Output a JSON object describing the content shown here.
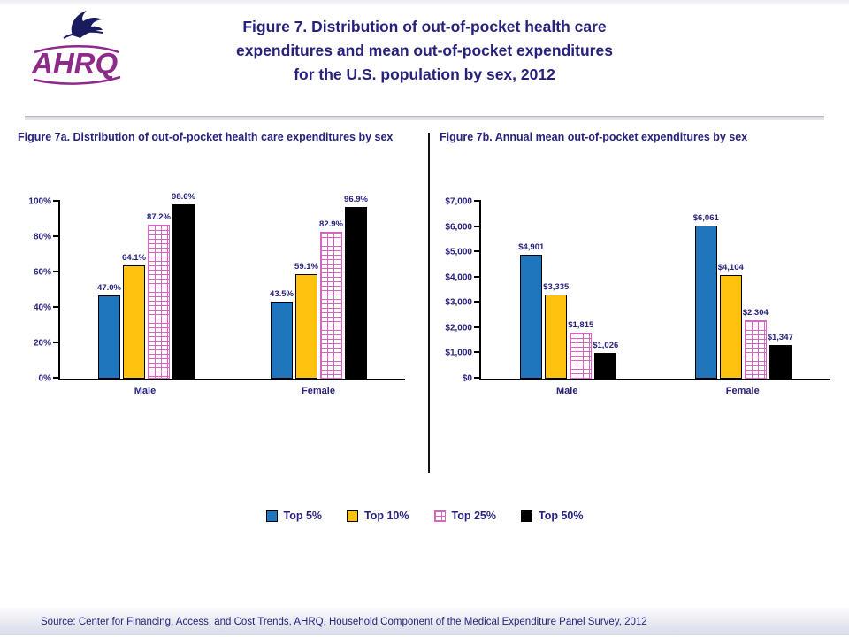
{
  "header": {
    "title": "Figure 7. Distribution of out-of-pocket health care\nexpenditures and mean out-of-pocket expenditures\nfor the U.S. population by sex, 2012",
    "logo_text": "AHRQ"
  },
  "colors": {
    "title_text": "#26227C",
    "logo_purple": "#8E2A8A",
    "eagle_navy": "#1A1A5E",
    "series_top5": "#2076BC",
    "series_top10": "#FFC20E",
    "series_top25_line": "#D466C0",
    "series_top50": "#000000",
    "footer_band": "#D7DBE9"
  },
  "legend": {
    "items": [
      "Top 5%",
      "Top 10%",
      "Top 25%",
      "Top 50%"
    ]
  },
  "footer": {
    "source": "Source: Center for Financing, Access, and Cost Trends, AHRQ, Household Component of the Medical Expenditure Panel Survey, 2012"
  },
  "chart_data": [
    {
      "type": "bar",
      "title": "Figure 7a. Distribution of out-of-pocket health care expenditures by sex",
      "categories": [
        "Male",
        "Female"
      ],
      "series": [
        {
          "name": "Top 5%",
          "color": "#2076BC",
          "values": [
            47.0,
            43.5
          ],
          "labels": [
            "47.0%",
            "43.5%"
          ]
        },
        {
          "name": "Top 10%",
          "color": "#FFC20E",
          "values": [
            64.1,
            59.1
          ],
          "labels": [
            "64.1%",
            "59.1%"
          ]
        },
        {
          "name": "Top 25%",
          "color": "#D466C0",
          "pattern": "brick",
          "values": [
            87.2,
            82.9
          ],
          "labels": [
            "87.2%",
            "82.9%"
          ]
        },
        {
          "name": "Top 50%",
          "color": "#000000",
          "values": [
            98.6,
            96.9
          ],
          "labels": [
            "98.6%",
            "96.9%"
          ]
        }
      ],
      "xlabel": "",
      "ylabel": "",
      "ylim": [
        0,
        100
      ],
      "ytick_values": [
        0,
        20,
        40,
        60,
        80,
        100
      ],
      "yticks": [
        "0%",
        "20%",
        "40%",
        "60%",
        "80%",
        "100%"
      ],
      "grid": false,
      "legend_position": "bottom-center"
    },
    {
      "type": "bar",
      "title": "Figure 7b. Annual mean out-of-pocket expenditures by sex",
      "categories": [
        "Male",
        "Female"
      ],
      "series": [
        {
          "name": "Top 5%",
          "color": "#2076BC",
          "values": [
            4901,
            6061
          ],
          "labels": [
            "$4,901",
            "$6,061"
          ]
        },
        {
          "name": "Top 10%",
          "color": "#FFC20E",
          "values": [
            3335,
            4104
          ],
          "labels": [
            "$3,335",
            "$4,104"
          ]
        },
        {
          "name": "Top 25%",
          "color": "#D466C0",
          "pattern": "brick",
          "values": [
            1815,
            2304
          ],
          "labels": [
            "$1,815",
            "$2,304"
          ]
        },
        {
          "name": "Top 50%",
          "color": "#000000",
          "values": [
            1026,
            1347
          ],
          "labels": [
            "$1,026",
            "$1,347"
          ]
        }
      ],
      "xlabel": "",
      "ylabel": "",
      "ylim": [
        0,
        7000
      ],
      "ytick_values": [
        0,
        1000,
        2000,
        3000,
        4000,
        5000,
        6000,
        7000
      ],
      "yticks": [
        "$0",
        "$1,000",
        "$2,000",
        "$3,000",
        "$4,000",
        "$5,000",
        "$6,000",
        "$7,000"
      ],
      "grid": false,
      "legend_position": "bottom-center"
    }
  ]
}
